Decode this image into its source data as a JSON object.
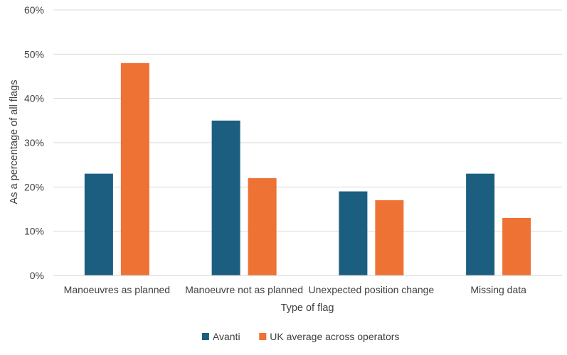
{
  "chart_data": {
    "type": "bar",
    "title": "",
    "xlabel": "Type of flag",
    "ylabel": "As a percentage of all flags",
    "categories": [
      "Manoeuvres as planned",
      "Manoeuvre not as planned",
      "Unexpected position change",
      "Missing data"
    ],
    "series": [
      {
        "name": "Avanti",
        "color": "#1b5e80",
        "values": [
          23,
          35,
          19,
          23
        ]
      },
      {
        "name": "UK average across operators",
        "color": "#ed7233",
        "values": [
          48,
          22,
          17,
          13
        ]
      }
    ],
    "ylim": [
      0,
      60
    ],
    "yticks": [
      "0%",
      "10%",
      "20%",
      "30%",
      "40%",
      "50%",
      "60%"
    ],
    "grid": true,
    "legend_position": "bottom"
  }
}
